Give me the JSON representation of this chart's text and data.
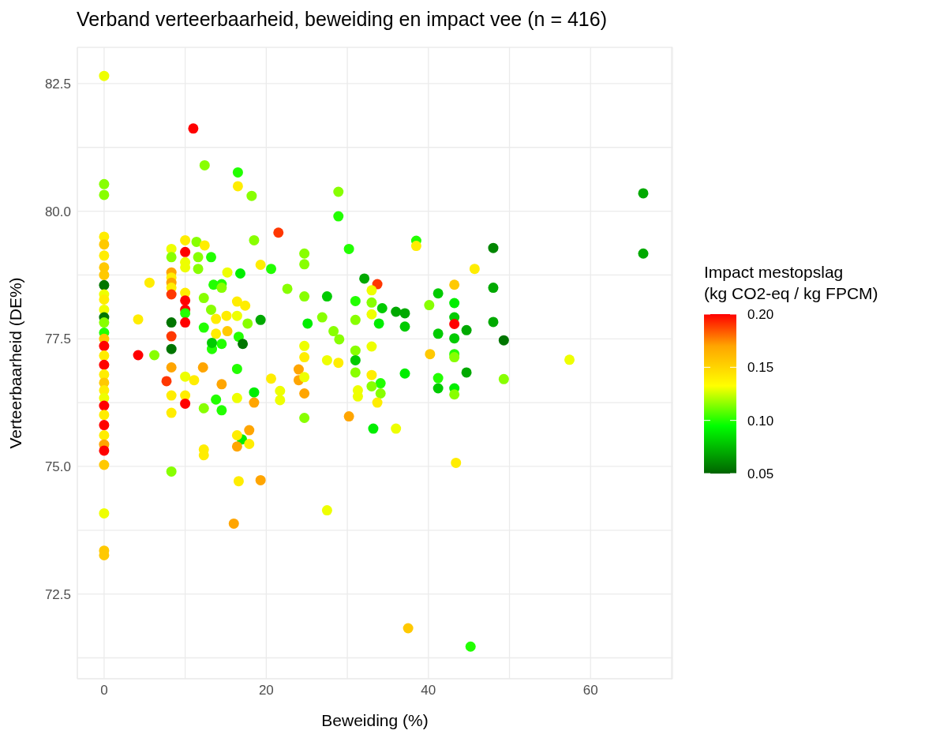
{
  "chart_data": {
    "type": "scatter",
    "title": "Verband verteerbaarheid, beweiding en impact vee (n = 416)",
    "xlabel": "Beweiding (%)",
    "ylabel": "Verteerbaarheid (DE%)",
    "clabel": "Impact mestopslag\n(kg CO2-eq / kg FPCM)",
    "xlim": [
      -3.3,
      70.1
    ],
    "xticks": [
      0,
      {
        "value": 10,
        "label": null
      },
      20,
      {
        "value": 30,
        "label": null
      },
      40,
      {
        "value": 50,
        "label": null
      },
      60,
      {
        "value": 70,
        "label": null
      }
    ],
    "ylim": [
      70.84,
      83.21
    ],
    "yticks": [
      {
        "value": 71.25,
        "label": null
      },
      72.5,
      {
        "value": 73.75,
        "label": null
      },
      {
        "value": 75,
        "label": "75.0"
      },
      {
        "value": 76.25,
        "label": null
      },
      77.5,
      {
        "value": 78.75,
        "label": null
      },
      {
        "value": 80,
        "label": "80.0"
      },
      {
        "value": 81.25,
        "label": null
      },
      82.5
    ],
    "clim": [
      0.05,
      0.2
    ],
    "cticks": [
      0.05,
      {
        "value": 0.1,
        "label": "0.10"
      },
      0.15,
      {
        "value": 0.2,
        "label": "0.20"
      }
    ],
    "grid": true,
    "marker": "circle",
    "series": [
      {
        "x": [
          0,
          0,
          0,
          0,
          0,
          0,
          0,
          0,
          0,
          0,
          0,
          0,
          0,
          0,
          0,
          0,
          0,
          0,
          0,
          0,
          0,
          0,
          0,
          0,
          0,
          0,
          0,
          0,
          0,
          0,
          0,
          0,
          0,
          4.2,
          4.2,
          5.6,
          6.2,
          7.7,
          8.3,
          8.3,
          8.3,
          8.3,
          8.3,
          8.3,
          8.3,
          8.3,
          8.3,
          8.3,
          8.3,
          8.3,
          8.3,
          8.3,
          10,
          10,
          10,
          10,
          10,
          10,
          10,
          10,
          10,
          10,
          10,
          10,
          11,
          12.4,
          16.5,
          16.5,
          18.2,
          11.4,
          12.4,
          13.2,
          11.6,
          15.2,
          16.8,
          13.5,
          14.5,
          11.6,
          21.5,
          18.5,
          28.9,
          28.9,
          30.2,
          38.5,
          38.5,
          24.7,
          24.7,
          19.3,
          20.6,
          32.1,
          33.7,
          33,
          41.2,
          22.6,
          24.7,
          27.5,
          31,
          33,
          34.3,
          36,
          37.1,
          40.1,
          33,
          19.3,
          26.9,
          31,
          25.1,
          33.9,
          37.1,
          41.2,
          28.3,
          29,
          24.7,
          33,
          31,
          66.5,
          66.5,
          48,
          45.7,
          43.2,
          48,
          43.2,
          43.2,
          43.2,
          44.7,
          43.2,
          48,
          49.3,
          43.2,
          43.2,
          57.4,
          40.2,
          44.7,
          41.2,
          49.3,
          41.2,
          43.2,
          43.2,
          43.4,
          45.2,
          37.1,
          31,
          31,
          33,
          34.1,
          33,
          34.1,
          31.3,
          31.3,
          33.7,
          24.7,
          27.5,
          28.9,
          24,
          24,
          24.7,
          24.7,
          20.6,
          21.7,
          21.7,
          18.5,
          18.5,
          24.7,
          30.2,
          33.2,
          36,
          17.9,
          17,
          17.9,
          16.4,
          19.3,
          16.6,
          27.5,
          37.5,
          16,
          12.3,
          12.3,
          16.4,
          12.3,
          13.8,
          14.5,
          16.4,
          14.5,
          16.4,
          13.3,
          12.2,
          11.1,
          13.8,
          16.4,
          17.4,
          15.1,
          14.5,
          16.6,
          12.3,
          14.5,
          12.3,
          13.2,
          16.4,
          17.7,
          15.2,
          13.8,
          17.1,
          13.3
        ],
        "values": [
          82.65,
          80.53,
          80.32,
          79.5,
          79.35,
          79.13,
          78.9,
          78.75,
          78.55,
          78.37,
          78.27,
          78.07,
          77.92,
          77.82,
          77.62,
          77.5,
          77.36,
          77.17,
          76.99,
          76.8,
          76.64,
          76.49,
          76.34,
          76.19,
          76.01,
          75.81,
          75.61,
          75.43,
          75.31,
          75.03,
          74.08,
          73.35,
          73.26,
          77.88,
          77.18,
          78.6,
          77.18,
          76.67,
          79.26,
          79.1,
          78.8,
          78.7,
          78.6,
          78.5,
          78.37,
          77.82,
          77.55,
          77.3,
          76.94,
          76.39,
          76.05,
          74.9,
          79.43,
          79.2,
          79,
          78.9,
          78.4,
          78.25,
          78.07,
          78,
          77.82,
          76.76,
          76.39,
          76.23,
          81.62,
          80.9,
          80.76,
          80.49,
          80.3,
          79.4,
          79.33,
          79.1,
          79.1,
          78.8,
          78.78,
          78.56,
          78.57,
          78.87,
          79.58,
          79.43,
          80.38,
          79.9,
          79.26,
          79.42,
          79.32,
          79.17,
          78.96,
          78.95,
          78.87,
          78.68,
          78.57,
          78.45,
          78.39,
          78.48,
          78.33,
          78.33,
          78.24,
          78.21,
          78.1,
          78.03,
          78,
          78.16,
          77.98,
          77.87,
          77.92,
          77.87,
          77.8,
          77.8,
          77.74,
          77.6,
          77.65,
          77.49,
          77.36,
          77.35,
          77.27,
          80.35,
          79.17,
          79.28,
          78.87,
          78.56,
          78.5,
          78.2,
          77.92,
          77.79,
          77.67,
          77.51,
          77.83,
          77.47,
          77.2,
          77.14,
          77.09,
          77.2,
          76.84,
          76.73,
          76.71,
          76.53,
          76.53,
          76.41,
          75.07,
          71.47,
          76.82,
          77.08,
          76.84,
          76.79,
          76.63,
          76.57,
          76.43,
          76.49,
          76.37,
          76.25,
          77.14,
          77.08,
          77.03,
          76.9,
          76.69,
          76.75,
          76.43,
          76.72,
          76.48,
          76.3,
          76.45,
          76.25,
          75.95,
          75.98,
          75.74,
          75.74,
          75.71,
          75.53,
          75.44,
          75.39,
          74.73,
          74.71,
          74.14,
          71.83,
          73.88,
          75.33,
          75.22,
          75.61,
          76.14,
          76.31,
          76.1,
          76.34,
          76.61,
          76.91,
          77.3,
          76.94,
          76.69,
          77.89,
          78.23,
          78.15,
          77.95,
          77.4,
          77.54,
          77.72,
          78.5,
          78.3,
          78.07,
          77.95,
          77.8,
          77.65,
          77.6,
          77.4,
          77.42
        ],
        "cvalues": [
          0.13,
          0.115,
          0.115,
          0.14,
          0.155,
          0.14,
          0.155,
          0.155,
          0.055,
          0.13,
          0.14,
          0.13,
          0.055,
          0.115,
          0.1,
          0.155,
          0.2,
          0.14,
          0.2,
          0.14,
          0.155,
          0.14,
          0.13,
          0.2,
          0.14,
          0.2,
          0.14,
          0.17,
          0.2,
          0.155,
          0.13,
          0.155,
          0.155,
          0.14,
          0.2,
          0.14,
          0.115,
          0.19,
          0.13,
          0.115,
          0.17,
          0.14,
          0.17,
          0.14,
          0.19,
          0.055,
          0.19,
          0.055,
          0.17,
          0.14,
          0.14,
          0.115,
          0.14,
          0.2,
          0.13,
          0.13,
          0.14,
          0.2,
          0.2,
          0.1,
          0.2,
          0.13,
          0.14,
          0.2,
          0.2,
          0.115,
          0.1,
          0.14,
          0.115,
          0.115,
          0.14,
          0.1,
          0.115,
          0.13,
          0.09,
          0.1,
          0.1,
          0.115,
          0.19,
          0.115,
          0.115,
          0.1,
          0.1,
          0.1,
          0.14,
          0.115,
          0.115,
          0.14,
          0.1,
          0.07,
          0.19,
          0.13,
          0.08,
          0.115,
          0.115,
          0.08,
          0.1,
          0.115,
          0.08,
          0.07,
          0.07,
          0.115,
          0.13,
          0.07,
          0.115,
          0.115,
          0.09,
          0.09,
          0.08,
          0.08,
          0.115,
          0.115,
          0.13,
          0.13,
          0.115,
          0.07,
          0.07,
          0.06,
          0.14,
          0.155,
          0.07,
          0.09,
          0.08,
          0.2,
          0.07,
          0.08,
          0.07,
          0.055,
          0.1,
          0.115,
          0.13,
          0.155,
          0.07,
          0.1,
          0.115,
          0.08,
          0.09,
          0.115,
          0.14,
          0.1,
          0.09,
          0.08,
          0.115,
          0.14,
          0.1,
          0.115,
          0.115,
          0.13,
          0.13,
          0.14,
          0.14,
          0.13,
          0.14,
          0.17,
          0.17,
          0.13,
          0.17,
          0.14,
          0.13,
          0.13,
          0.09,
          0.17,
          0.115,
          0.17,
          0.09,
          0.13,
          0.17,
          0.09,
          0.14,
          0.17,
          0.17,
          0.14,
          0.13,
          0.155,
          0.17,
          0.14,
          0.14,
          0.14,
          0.115,
          0.1,
          0.1,
          0.13,
          0.17,
          0.1,
          0.1,
          0.17,
          0.14,
          0.14,
          0.14,
          0.14,
          0.14,
          0.1,
          0.1,
          0.1,
          0.115,
          0.115,
          0.115,
          0.13,
          0.115,
          0.155,
          0.14,
          0.055,
          0.08
        ]
      }
    ]
  }
}
